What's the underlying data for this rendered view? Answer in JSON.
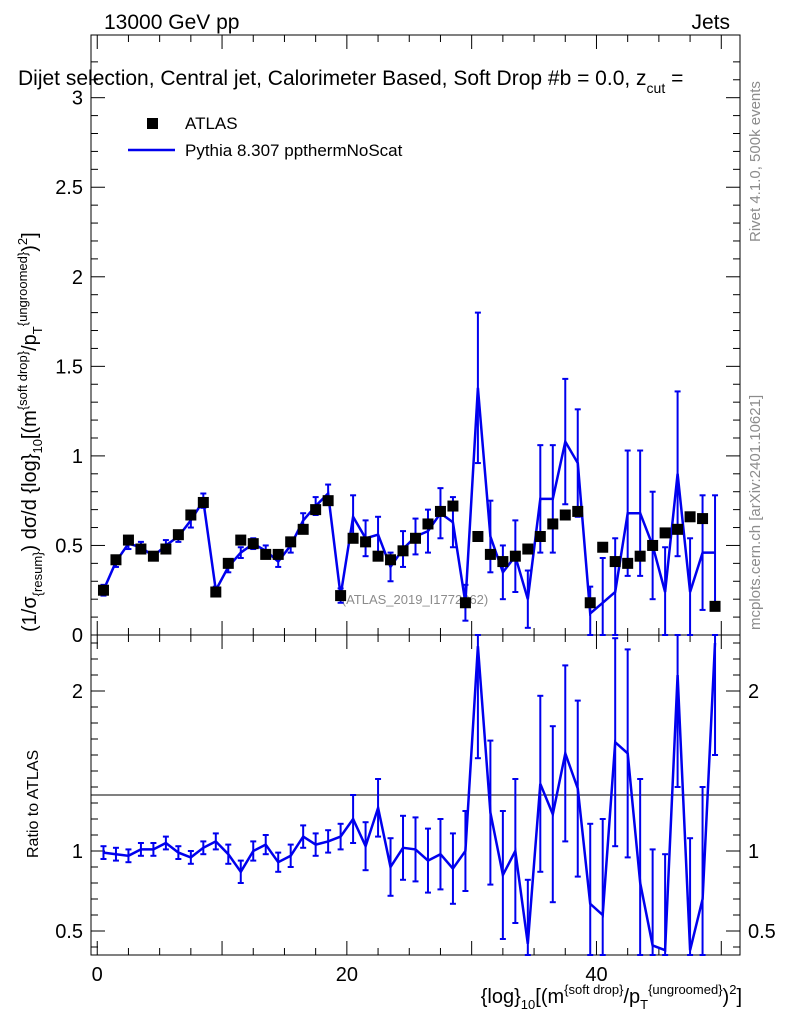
{
  "header": {
    "energy_label": "13000 GeV pp",
    "category_label": "Jets",
    "plot_title": "Dijet selection, Central jet, Calorimeter Based, Soft Drop #b = 0.0, z",
    "title_subscript": "cut",
    "title_suffix": " ="
  },
  "side_labels": {
    "rivet": "Rivet 4.1.0,  500k events",
    "mcplots": "mcplots.cern.ch [arXiv:2401.10621]"
  },
  "watermark": "(ATLAS_2019_I1772062)",
  "legend": {
    "data_label": "ATLAS",
    "mc_label": "Pythia 8.307 ppthermNoScat"
  },
  "axes": {
    "y_main_label": "(1/σ{resum}) dσ/d {log}10[(m{soft drop}/pT{ungroomed})2]",
    "y_ratio_label": "Ratio to ATLAS",
    "x_label": "{log}10[(m{soft drop}/pT{ungroomed})2]"
  },
  "colors": {
    "mc": "#0000ee",
    "data": "#000000"
  },
  "chart_data": {
    "type": "line",
    "x_range": [
      -0.5,
      51.5
    ],
    "ylim_main": [
      0,
      3.35
    ],
    "ylim_ratio": [
      0.35,
      2.35
    ],
    "y_main_ticks": [
      "0",
      "0.5",
      "1",
      "1.5",
      "2",
      "2.5",
      "3"
    ],
    "y_main_tick_values": [
      0,
      0.5,
      1,
      1.5,
      2,
      2.5,
      3
    ],
    "y_ratio_ticks": [
      "0.5",
      "1",
      "2"
    ],
    "y_ratio_tick_values": [
      0.5,
      1,
      2
    ],
    "x_ticks": [
      "0",
      "20",
      "40"
    ],
    "x_tick_values": [
      0,
      20,
      40
    ],
    "x": [
      0.5,
      1.5,
      2.5,
      3.5,
      4.5,
      5.5,
      6.5,
      7.5,
      8.5,
      9.5,
      10.5,
      11.5,
      12.5,
      13.5,
      14.5,
      15.5,
      16.5,
      17.5,
      18.5,
      19.5,
      20.5,
      21.5,
      22.5,
      23.5,
      24.5,
      25.5,
      26.5,
      27.5,
      28.5,
      29.5,
      30.5,
      31.5,
      32.5,
      33.5,
      34.5,
      35.5,
      36.5,
      37.5,
      38.5,
      39.5,
      40.5,
      41.5,
      42.5,
      43.5,
      44.5,
      45.5,
      46.5,
      47.5,
      48.5,
      49.5
    ],
    "series": [
      {
        "name": "ATLAS",
        "values": [
          0.25,
          0.42,
          0.53,
          0.48,
          0.44,
          0.48,
          0.56,
          0.67,
          0.74,
          0.24,
          0.4,
          0.53,
          0.51,
          0.45,
          0.45,
          0.52,
          0.59,
          0.7,
          0.75,
          0.22,
          0.54,
          0.52,
          0.44,
          0.42,
          0.47,
          0.54,
          0.62,
          0.69,
          0.72,
          0.18,
          0.55,
          0.45,
          0.41,
          0.44,
          0.48,
          0.55,
          0.62,
          0.67,
          0.69,
          0.18,
          0.49,
          0.41,
          0.4,
          0.44,
          0.5,
          0.57,
          0.59,
          0.66,
          0.65,
          0.16
        ]
      },
      {
        "name": "Pythia 8.307 ppthermNoScat",
        "values": [
          0.25,
          0.41,
          0.51,
          0.49,
          0.44,
          0.5,
          0.55,
          0.64,
          0.75,
          0.25,
          0.38,
          0.46,
          0.51,
          0.47,
          0.41,
          0.5,
          0.64,
          0.72,
          0.79,
          0.22,
          0.66,
          0.54,
          0.56,
          0.38,
          0.48,
          0.55,
          0.58,
          0.68,
          0.63,
          0.18,
          1.38,
          0.55,
          0.35,
          0.44,
          0.2,
          0.76,
          0.76,
          1.08,
          0.96,
          0.12,
          0.18,
          0.24,
          0.68,
          0.68,
          0.5,
          0.24,
          0.9,
          0.24,
          0.46,
          0.46
        ],
        "errors": [
          0.03,
          0.03,
          0.03,
          0.03,
          0.02,
          0.03,
          0.03,
          0.04,
          0.04,
          0.02,
          0.03,
          0.03,
          0.03,
          0.03,
          0.03,
          0.04,
          0.04,
          0.05,
          0.05,
          0.04,
          0.12,
          0.1,
          0.1,
          0.08,
          0.1,
          0.1,
          0.12,
          0.14,
          0.14,
          0.1,
          0.42,
          0.2,
          0.15,
          0.2,
          0.16,
          0.3,
          0.3,
          0.35,
          0.3,
          0.15,
          0.25,
          0.3,
          0.35,
          0.35,
          0.3,
          0.25,
          0.46,
          0.3,
          0.32,
          0.32
        ]
      }
    ],
    "ratio": [
      0.99,
      0.98,
      0.97,
      1.01,
      1.01,
      1.05,
      0.99,
      0.96,
      1.02,
      1.06,
      0.98,
      0.87,
      1.0,
      1.04,
      0.93,
      0.97,
      1.09,
      1.04,
      1.06,
      1.09,
      1.2,
      1.03,
      1.27,
      0.9,
      1.02,
      1.01,
      0.94,
      0.98,
      0.89,
      1.0,
      2.28,
      1.24,
      0.85,
      1.0,
      0.42,
      1.42,
      1.23,
      1.61,
      1.39,
      0.67,
      0.6,
      1.68,
      1.61,
      0.8,
      0.41,
      0.38,
      2.1,
      0.38,
      0.7,
      2.3
    ],
    "ratio_errors": [
      0.04,
      0.04,
      0.04,
      0.04,
      0.04,
      0.04,
      0.04,
      0.04,
      0.04,
      0.05,
      0.06,
      0.07,
      0.06,
      0.06,
      0.06,
      0.07,
      0.07,
      0.07,
      0.07,
      0.08,
      0.15,
      0.15,
      0.18,
      0.18,
      0.2,
      0.2,
      0.2,
      0.22,
      0.22,
      0.25,
      0.7,
      0.45,
      0.4,
      0.45,
      0.4,
      0.55,
      0.55,
      0.55,
      0.55,
      0.5,
      0.6,
      0.65,
      0.65,
      0.65,
      0.6,
      0.6,
      0.7,
      0.7,
      0.7,
      0.7
    ]
  }
}
